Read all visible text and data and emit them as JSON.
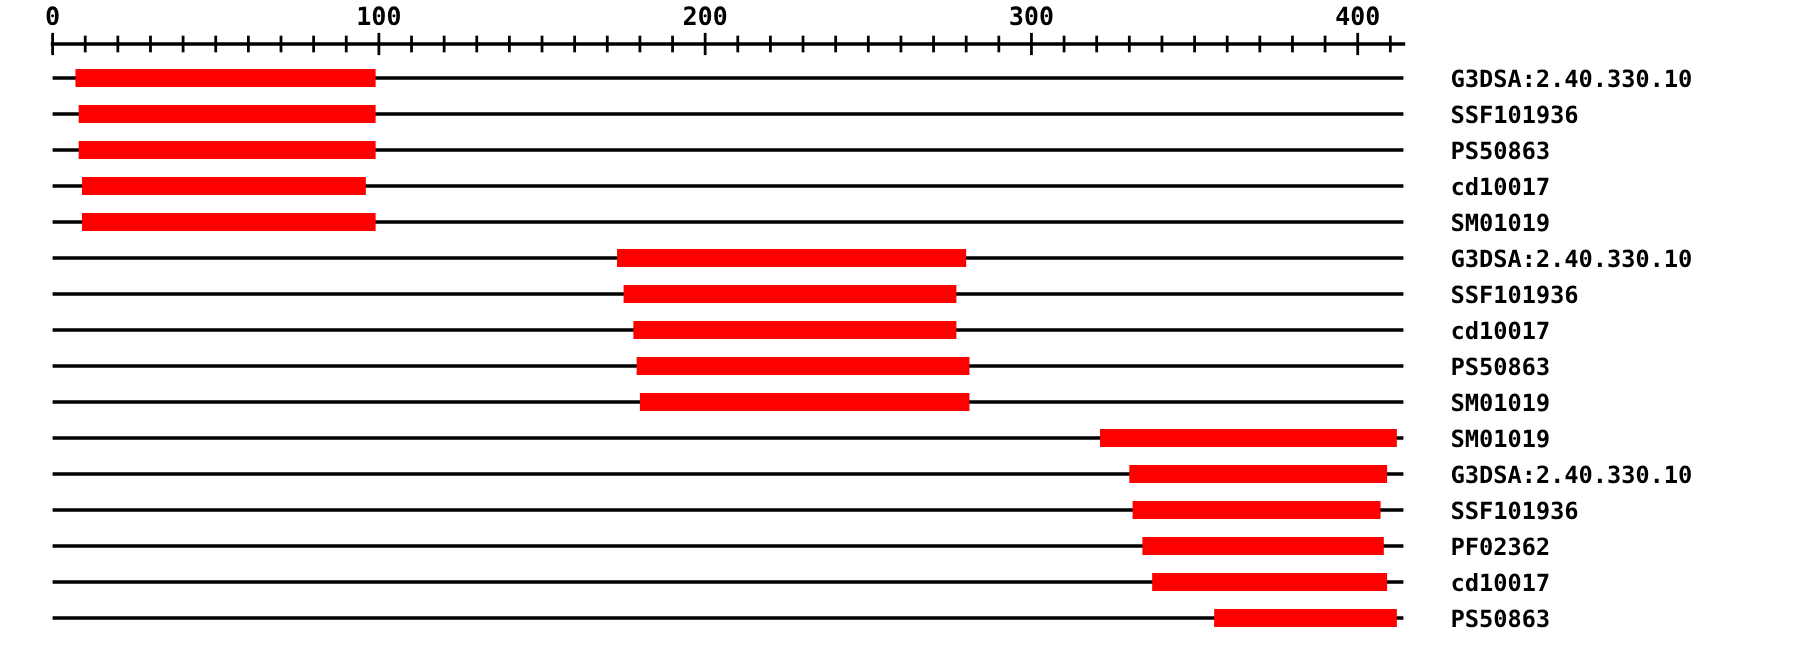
{
  "chart_data": {
    "type": "bar",
    "orientation": "horizontal",
    "categories": [
      "G3DSA:2.40.330.10",
      "SSF101936",
      "PS50863",
      "cd10017",
      "SM01019",
      "G3DSA:2.40.330.10",
      "SSF101936",
      "cd10017",
      "PS50863",
      "SM01019",
      "SM01019",
      "G3DSA:2.40.330.10",
      "SSF101936",
      "PF02362",
      "cd10017",
      "PS50863"
    ],
    "base": [
      7,
      8,
      8,
      9,
      9,
      173,
      175,
      178,
      179,
      180,
      321,
      330,
      331,
      334,
      337,
      356
    ],
    "values": [
      92,
      91,
      91,
      87,
      90,
      107,
      102,
      99,
      102,
      101,
      91,
      79,
      76,
      74,
      72,
      56
    ],
    "color": "#ff0000",
    "xlim": [
      0,
      414
    ],
    "xticks": [
      0,
      {
        "value": 10,
        "label": null
      },
      {
        "value": 20,
        "label": null
      },
      {
        "value": 30,
        "label": null
      },
      {
        "value": 40,
        "label": null
      },
      {
        "value": 50,
        "label": null
      },
      {
        "value": 60,
        "label": null
      },
      {
        "value": 70,
        "label": null
      },
      {
        "value": 80,
        "label": null
      },
      {
        "value": 90,
        "label": null
      },
      100,
      {
        "value": 110,
        "label": null
      },
      {
        "value": 120,
        "label": null
      },
      {
        "value": 130,
        "label": null
      },
      {
        "value": 140,
        "label": null
      },
      {
        "value": 150,
        "label": null
      },
      {
        "value": 160,
        "label": null
      },
      {
        "value": 170,
        "label": null
      },
      {
        "value": 180,
        "label": null
      },
      {
        "value": 190,
        "label": null
      },
      200,
      {
        "value": 210,
        "label": null
      },
      {
        "value": 220,
        "label": null
      },
      {
        "value": 230,
        "label": null
      },
      {
        "value": 240,
        "label": null
      },
      {
        "value": 250,
        "label": null
      },
      {
        "value": 260,
        "label": null
      },
      {
        "value": 270,
        "label": null
      },
      {
        "value": 280,
        "label": null
      },
      {
        "value": 290,
        "label": null
      },
      300,
      {
        "value": 310,
        "label": null
      },
      {
        "value": 320,
        "label": null
      },
      {
        "value": 330,
        "label": null
      },
      {
        "value": 340,
        "label": null
      },
      {
        "value": 350,
        "label": null
      },
      {
        "value": 360,
        "label": null
      },
      {
        "value": 370,
        "label": null
      },
      {
        "value": 380,
        "label": null
      },
      {
        "value": 390,
        "label": null
      },
      400,
      {
        "value": 410,
        "label": null
      }
    ],
    "grid": "y"
  }
}
